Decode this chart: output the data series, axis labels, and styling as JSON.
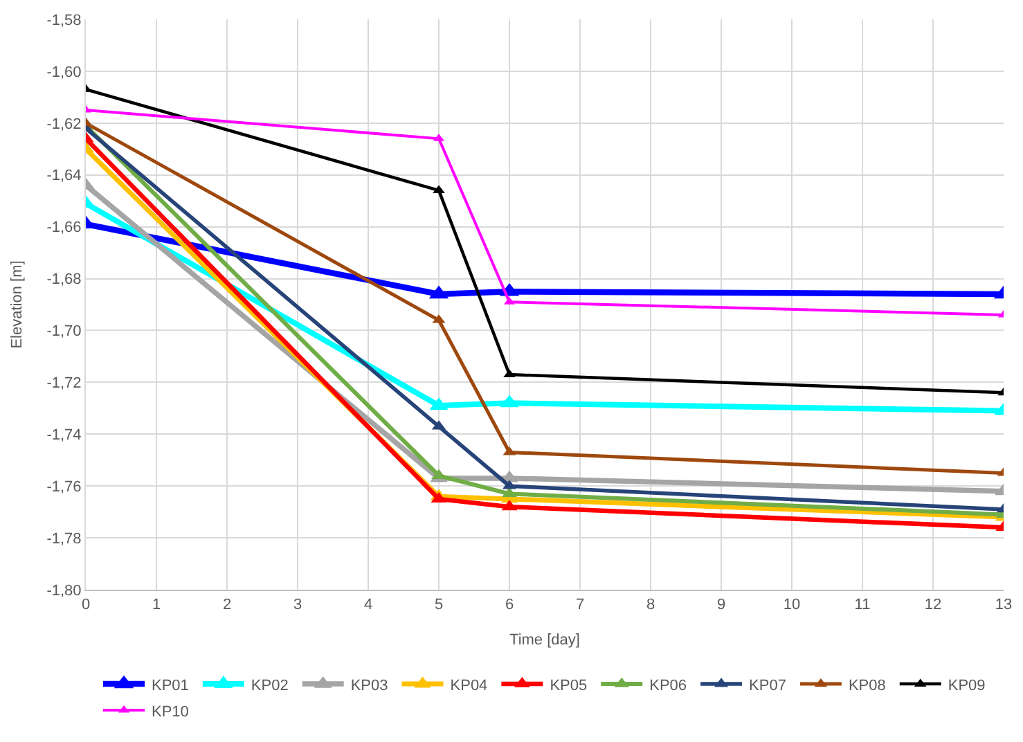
{
  "chart_data": {
    "type": "line",
    "xlabel": "Time [day]",
    "ylabel": "Elevation [m]",
    "x": [
      0,
      5,
      6,
      13
    ],
    "xlim": [
      0,
      13
    ],
    "xticks": [
      0,
      1,
      2,
      3,
      4,
      5,
      6,
      7,
      8,
      9,
      10,
      11,
      12,
      13
    ],
    "ylim": [
      -1.8,
      -1.58
    ],
    "yticks": [
      {
        "value": -1.8,
        "label": "-1,80"
      },
      {
        "value": -1.78,
        "label": "-1,78"
      },
      {
        "value": -1.76,
        "label": "-1,76"
      },
      {
        "value": -1.74,
        "label": "-1,74"
      },
      {
        "value": -1.72,
        "label": "-1,72"
      },
      {
        "value": -1.7,
        "label": "-1,70"
      },
      {
        "value": -1.68,
        "label": "-1,68"
      },
      {
        "value": -1.66,
        "label": "-1,66"
      },
      {
        "value": -1.64,
        "label": "-1,64"
      },
      {
        "value": -1.62,
        "label": "-1,62"
      },
      {
        "value": -1.6,
        "label": "-1,60"
      },
      {
        "value": -1.58,
        "label": "-1,58"
      }
    ],
    "grid": true,
    "legend": "bottom",
    "marker": "triangle",
    "line_style": "solid",
    "series": [
      {
        "name": "KP01",
        "color": "#0000ff",
        "values": [
          -1.659,
          -1.686,
          -1.685,
          -1.686
        ]
      },
      {
        "name": "KP02",
        "color": "#00ffff",
        "values": [
          -1.651,
          -1.729,
          -1.728,
          -1.731
        ]
      },
      {
        "name": "KP03",
        "color": "#a5a5a5",
        "values": [
          -1.644,
          -1.757,
          -1.757,
          -1.762
        ]
      },
      {
        "name": "KP04",
        "color": "#ffc000",
        "values": [
          -1.63,
          -1.764,
          -1.765,
          -1.772
        ]
      },
      {
        "name": "KP05",
        "color": "#ff0000",
        "values": [
          -1.626,
          -1.765,
          -1.768,
          -1.776
        ]
      },
      {
        "name": "KP06",
        "color": "#70ad47",
        "values": [
          -1.621,
          -1.756,
          -1.763,
          -1.771
        ]
      },
      {
        "name": "KP07",
        "color": "#264478",
        "values": [
          -1.622,
          -1.737,
          -1.76,
          -1.769
        ]
      },
      {
        "name": "KP08",
        "color": "#9e480e",
        "values": [
          -1.62,
          -1.696,
          -1.747,
          -1.755
        ]
      },
      {
        "name": "KP09",
        "color": "#000000",
        "values": [
          -1.607,
          -1.646,
          -1.717,
          -1.724
        ]
      },
      {
        "name": "KP10",
        "color": "#ff00ff",
        "values": [
          -1.615,
          -1.626,
          -1.689,
          -1.694
        ]
      }
    ]
  }
}
